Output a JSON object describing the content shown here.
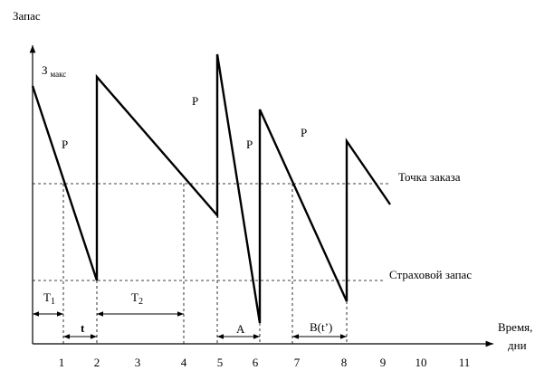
{
  "axes": {
    "y_label": "Запас",
    "x_label_line1": "Время,",
    "x_label_line2": "дни",
    "x_ticks": [
      "1",
      "2",
      "3",
      "4",
      "5",
      "6",
      "7",
      "8",
      "9",
      "10",
      "11"
    ]
  },
  "labels": {
    "max_main": "З",
    "max_sub": "макс",
    "reorder_point": "Точка заказа",
    "safety_stock": "Страховой запас",
    "p": [
      "Р",
      "Р",
      "Р",
      "Р"
    ],
    "t1_main": "T",
    "t1_sub": "1",
    "t2_main": "T",
    "t2_sub": "2",
    "t": "t",
    "a": "A",
    "b": "B(t’)"
  }
}
